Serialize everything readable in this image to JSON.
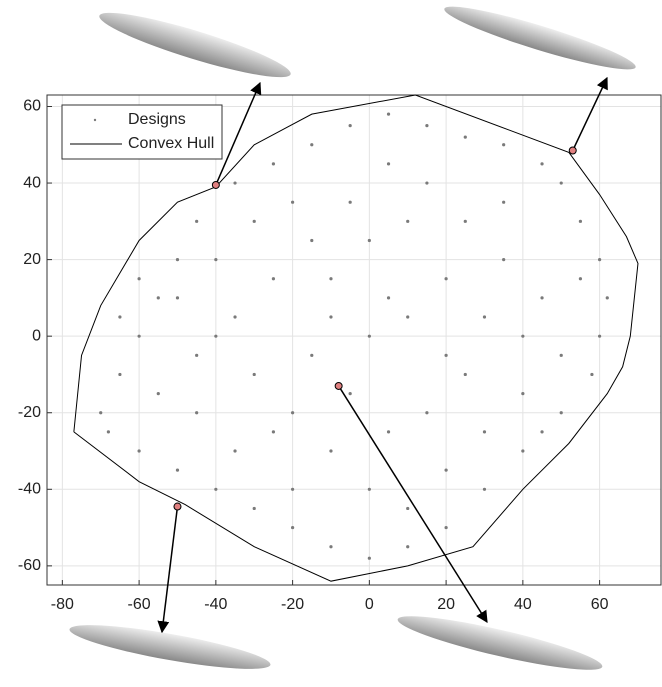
{
  "chart_data": {
    "type": "scatter",
    "xlim": [
      -84,
      76
    ],
    "ylim": [
      -65,
      63
    ],
    "xticks": [
      -80,
      -60,
      -40,
      -20,
      0,
      20,
      40,
      60
    ],
    "yticks": [
      -60,
      -40,
      -20,
      0,
      20,
      40,
      60
    ],
    "grid": true,
    "legend": "upper-left",
    "series": [
      {
        "name": "Designs",
        "color": "#7a7a7a",
        "x": [
          -70,
          -65,
          -60,
          -55,
          -50,
          -45,
          -35,
          -25,
          -15,
          -5,
          5,
          15,
          25,
          35,
          45,
          50,
          55,
          60,
          62,
          60,
          58,
          50,
          40,
          30,
          20,
          10,
          0,
          -10,
          -20,
          -30,
          -40,
          -50,
          -60,
          -68,
          -55,
          -45,
          -35,
          -25,
          -15,
          -5,
          5,
          15,
          25,
          35,
          45,
          50,
          40,
          30,
          20,
          10,
          0,
          -10,
          -20,
          -30,
          -40,
          -50,
          -40,
          -30,
          -20,
          -10,
          0,
          10,
          20,
          30,
          40,
          25,
          15,
          5,
          -5,
          -15,
          -25,
          -35,
          -45,
          0,
          10,
          -10,
          20,
          35,
          -60,
          -65,
          55,
          45,
          -20,
          5
        ],
        "y": [
          -20,
          -10,
          0,
          10,
          20,
          30,
          40,
          45,
          50,
          55,
          58,
          55,
          52,
          50,
          45,
          40,
          30,
          20,
          10,
          0,
          -10,
          -20,
          -30,
          -40,
          -50,
          -55,
          -58,
          -55,
          -50,
          -45,
          -40,
          -35,
          -30,
          -25,
          -15,
          -5,
          5,
          15,
          25,
          35,
          45,
          40,
          30,
          20,
          10,
          -5,
          -15,
          -25,
          -35,
          -45,
          -40,
          -30,
          -20,
          -10,
          0,
          10,
          20,
          30,
          35,
          15,
          25,
          30,
          15,
          5,
          0,
          -10,
          -20,
          -25,
          -15,
          -5,
          -25,
          -30,
          -20,
          0,
          5,
          5,
          -5,
          35,
          15,
          5,
          15,
          -25,
          -40,
          10
        ]
      },
      {
        "name": "Convex Hull",
        "color": "#000000",
        "x": [
          -77,
          -75,
          -70,
          -60,
          -50,
          -40,
          -30,
          -15,
          12,
          52,
          60,
          67,
          70,
          68,
          66,
          62,
          52,
          40,
          27,
          10,
          -10,
          -30,
          -48,
          -60,
          -77
        ],
        "y": [
          -25,
          -5,
          8,
          25,
          35,
          39,
          50,
          58,
          63,
          48,
          37,
          26,
          19,
          0,
          -8,
          -15,
          -28,
          -40,
          -55,
          -60,
          -64,
          -55,
          -44,
          -38,
          -25
        ]
      }
    ],
    "highlights": {
      "color": "#e08080",
      "x": [
        -40,
        53,
        -8,
        -50
      ],
      "y": [
        39.5,
        48.5,
        -13,
        -44.5
      ]
    }
  }
}
